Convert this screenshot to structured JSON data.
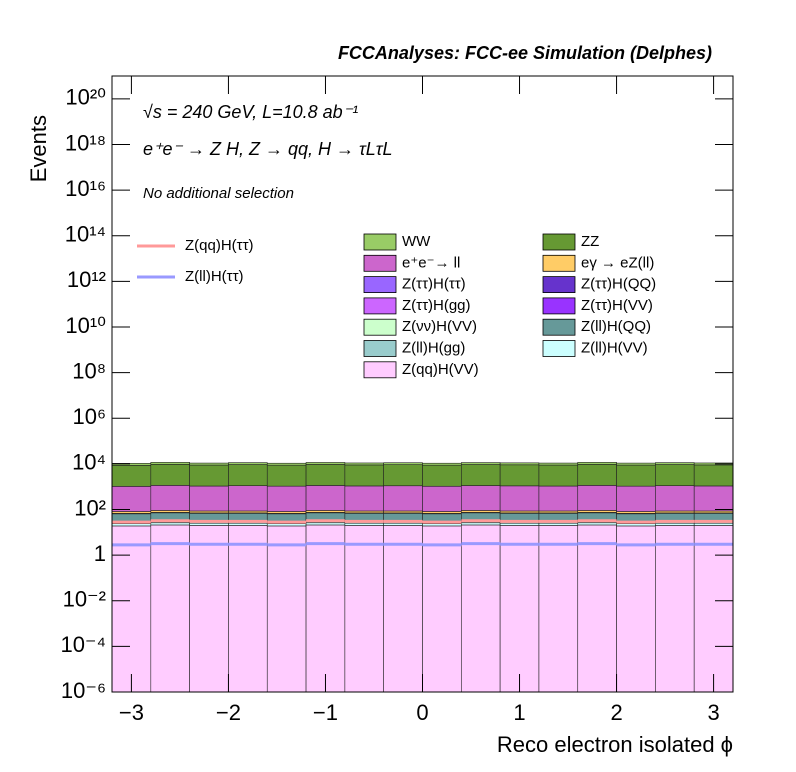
{
  "chart_data": {
    "type": "stacked_histogram",
    "title": "FCCAnalyses: FCC-ee Simulation (Delphes)",
    "annotations": [
      "√s = 240 GeV, L=10.8 ab⁻¹",
      "e⁺e⁻ → Z H, Z → qq, H → τLτL",
      "No additional selection"
    ],
    "x_label": "Reco electron isolated ϕ",
    "y_label": "Events",
    "log_y": true,
    "xlim": [
      -3.2,
      3.2
    ],
    "ylim": [
      1e-06,
      1e+21
    ],
    "xticks": [
      {
        "value": -3,
        "label": "−3"
      },
      {
        "value": -2,
        "label": "−2"
      },
      {
        "value": -1,
        "label": "−1"
      },
      0,
      1,
      2,
      3
    ],
    "yticks": [
      {
        "value": 1e-06,
        "label": "10⁻⁶"
      },
      {
        "value": 0.0001,
        "label": "10⁻⁴"
      },
      {
        "value": 0.01,
        "label": "10⁻²"
      },
      1,
      {
        "value": 100,
        "label": "10²"
      },
      {
        "value": 10000,
        "label": "10⁴"
      },
      {
        "value": 1000000.0,
        "label": "10⁶"
      },
      {
        "value": 100000000.0,
        "label": "10⁸"
      },
      {
        "value": 10000000000.0,
        "label": "10¹⁰"
      },
      {
        "value": 1000000000000.0,
        "label": "10¹²"
      },
      {
        "value": 100000000000000.0,
        "label": "10¹⁴"
      },
      {
        "value": 1e+16,
        "label": "10¹⁶"
      },
      {
        "value": 1e+18,
        "label": "10¹⁸"
      },
      {
        "value": 1e+20,
        "label": "10²⁰"
      }
    ],
    "bins": [
      -3.2,
      -2.8,
      -2.4,
      -2.0,
      -1.6,
      -1.2,
      -0.8,
      -0.4,
      0,
      0.4,
      0.8,
      1.2,
      1.6,
      2.0,
      2.4,
      2.8,
      3.2
    ],
    "series": [
      {
        "name": "WW",
        "color": "#99cc66",
        "values": [
          1900,
          2100,
          1950,
          2050,
          1900,
          2080,
          1980,
          2020,
          1920,
          2060,
          2000,
          1960,
          2100,
          1940,
          2040,
          1980
        ]
      },
      {
        "name": "ZZ",
        "color": "#669933",
        "values": [
          7600,
          8400,
          7800,
          8200,
          7700,
          8300,
          7900,
          8100,
          7700,
          8200,
          8000,
          7800,
          8400,
          7800,
          8200,
          7900
        ]
      },
      {
        "name": "e⁺e⁻→ ll",
        "color": "#cc66cc",
        "values": [
          950,
          1050,
          980,
          1020,
          970,
          1040,
          990,
          1010,
          960,
          1030,
          1000,
          980,
          1050,
          970,
          1020,
          990
        ]
      },
      {
        "name": "eγ → eZ(ll)",
        "color": "#ffcc66",
        "values": [
          14,
          16,
          15,
          15,
          14,
          16,
          15,
          15,
          14,
          16,
          15,
          15,
          16,
          14,
          15,
          15
        ]
      },
      {
        "name": "Z(ττ)H(ττ)",
        "color": "#9966ff",
        "values": [
          0.19,
          0.21,
          0.2,
          0.2,
          0.19,
          0.21,
          0.2,
          0.2,
          0.19,
          0.21,
          0.2,
          0.2,
          0.21,
          0.19,
          0.2,
          0.2
        ]
      },
      {
        "name": "Z(ττ)H(QQ)",
        "color": "#6633cc",
        "values": [
          0.55,
          0.62,
          0.58,
          0.6,
          0.57,
          0.63,
          0.6,
          0.6,
          0.56,
          0.62,
          0.6,
          0.58,
          0.63,
          0.57,
          0.61,
          0.59
        ]
      },
      {
        "name": "Z(ττ)H(gg)",
        "color": "#cc66ff",
        "values": [
          0.05,
          0.06,
          0.05,
          0.05,
          0.05,
          0.06,
          0.05,
          0.05,
          0.05,
          0.06,
          0.05,
          0.05,
          0.06,
          0.05,
          0.05,
          0.05
        ]
      },
      {
        "name": "Z(ττ)H(VV)",
        "color": "#9933ff",
        "values": [
          0.1,
          0.11,
          0.1,
          0.1,
          0.09,
          0.11,
          0.1,
          0.1,
          0.09,
          0.11,
          0.1,
          0.1,
          0.11,
          0.09,
          0.1,
          0.1
        ]
      },
      {
        "name": "Z(νν)H(VV)",
        "color": "#ccffcc",
        "values": [
          1.9,
          2.1,
          2,
          2,
          1.9,
          2.1,
          2,
          2,
          1.9,
          2.1,
          2,
          2,
          2.1,
          1.9,
          2,
          2
        ]
      },
      {
        "name": "Z(ll)H(QQ)",
        "color": "#669999",
        "values": [
          38,
          42,
          40,
          40,
          38,
          42,
          40,
          40,
          38,
          42,
          40,
          40,
          42,
          38,
          40,
          40
        ]
      },
      {
        "name": "Z(ll)H(gg)",
        "color": "#99cccc",
        "values": [
          2.8,
          3.2,
          3,
          3,
          2.8,
          3.2,
          3,
          3,
          2.8,
          3.2,
          3,
          3,
          3.2,
          2.8,
          3,
          3
        ]
      },
      {
        "name": "Z(ll)H(VV)",
        "color": "#ccffff",
        "values": [
          4.8,
          5.2,
          5,
          5,
          4.8,
          5.2,
          5,
          5,
          4.8,
          5.2,
          5,
          5,
          5.2,
          4.8,
          5,
          5
        ]
      },
      {
        "name": "Z(qq)H(VV)",
        "color": "#ffccff",
        "values": [
          19,
          21,
          20,
          20,
          19,
          21,
          20,
          20,
          19,
          21,
          20,
          20,
          21,
          19,
          20,
          20
        ]
      },
      {
        "name": "Z(qq)H(ττ)",
        "color": "#ff9999",
        "histtype": "step",
        "values": [
          28,
          32,
          30,
          30,
          28,
          32,
          30,
          30,
          28,
          32,
          30,
          30,
          32,
          28,
          30,
          30
        ]
      },
      {
        "name": "Z(ll)H(ττ)",
        "color": "#9999ff",
        "histtype": "step",
        "values": [
          2.8,
          3.2,
          3,
          3,
          2.8,
          3.2,
          3,
          3,
          2.8,
          3.2,
          3,
          3,
          3.2,
          2.8,
          3,
          3
        ]
      }
    ]
  }
}
